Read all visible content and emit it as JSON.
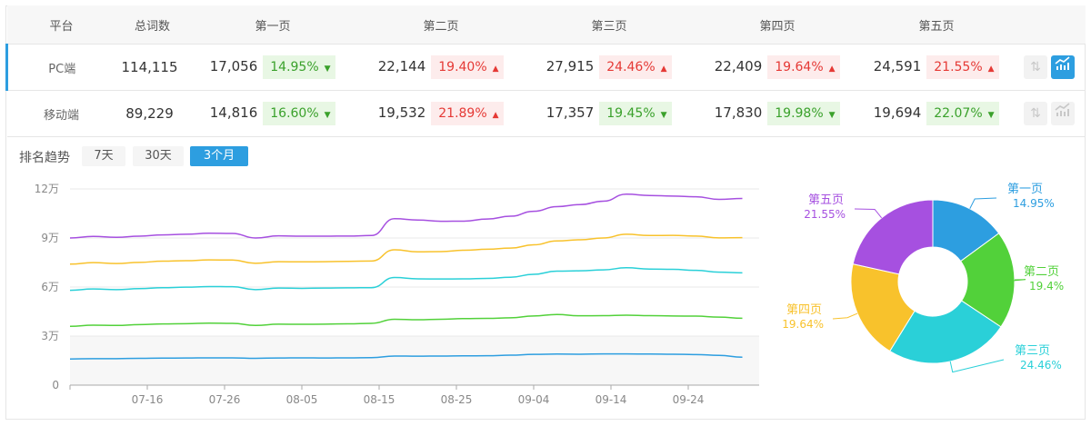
{
  "table": {
    "headers": [
      "平台",
      "总词数",
      "第一页",
      "第二页",
      "第三页",
      "第四页",
      "第五页"
    ],
    "rows": [
      {
        "platform": "PC端",
        "total": "114,115",
        "pages": [
          {
            "count": "17,056",
            "pct": "14.95%",
            "dir": "down"
          },
          {
            "count": "22,144",
            "pct": "19.40%",
            "dir": "up"
          },
          {
            "count": "27,915",
            "pct": "24.46%",
            "dir": "up"
          },
          {
            "count": "22,409",
            "pct": "19.64%",
            "dir": "up"
          },
          {
            "count": "24,591",
            "pct": "21.55%",
            "dir": "up"
          }
        ],
        "chart_active": true
      },
      {
        "platform": "移动端",
        "total": "89,229",
        "pages": [
          {
            "count": "14,816",
            "pct": "16.60%",
            "dir": "down"
          },
          {
            "count": "19,532",
            "pct": "21.89%",
            "dir": "up"
          },
          {
            "count": "17,357",
            "pct": "19.45%",
            "dir": "down"
          },
          {
            "count": "17,830",
            "pct": "19.98%",
            "dir": "down"
          },
          {
            "count": "19,694",
            "pct": "22.07%",
            "dir": "down"
          }
        ],
        "chart_active": false
      }
    ]
  },
  "icons": {
    "up": "triangle-up",
    "down": "triangle-down",
    "sort": "sort-arrows-icon",
    "chart": "bar-line-chart-icon"
  },
  "trend": {
    "title": "排名趋势",
    "ranges": [
      "7天",
      "30天",
      "3个月"
    ],
    "active_range": "3个月"
  },
  "colors": {
    "accent": "#2d9ee0",
    "up": "#e53935",
    "down": "#3aa12b",
    "series": [
      "#2d9ee0",
      "#52d13a",
      "#2ad0d8",
      "#f8c22c",
      "#a650e0"
    ]
  },
  "chart_data": [
    {
      "type": "line",
      "stacked": true,
      "ylim": [
        0,
        120000
      ],
      "y_ticks": [
        "0",
        "3万",
        "6万",
        "9万",
        "12万"
      ],
      "x_ticks": [
        "07-16",
        "07-26",
        "08-05",
        "08-15",
        "08-25",
        "09-04",
        "09-14",
        "09-24"
      ],
      "x": [
        "07-06",
        "07-09",
        "07-12",
        "07-15",
        "07-18",
        "07-21",
        "07-24",
        "07-27",
        "07-30",
        "08-02",
        "08-05",
        "08-08",
        "08-11",
        "08-14",
        "08-17",
        "08-20",
        "08-23",
        "08-26",
        "08-29",
        "09-01",
        "09-04",
        "09-07",
        "09-10",
        "09-13",
        "09-16",
        "09-19",
        "09-22",
        "09-25",
        "09-28",
        "10-01"
      ],
      "series": [
        {
          "values": [
            16000,
            16200,
            16200,
            16400,
            16500,
            16600,
            16700,
            16700,
            16400,
            16600,
            16700,
            16600,
            16700,
            16800,
            17800,
            17700,
            17800,
            17900,
            18000,
            18300,
            18800,
            19000,
            18900,
            19100,
            19100,
            19000,
            18900,
            18700,
            18200,
            17100
          ]
        },
        {
          "values": [
            20000,
            20500,
            20300,
            20600,
            20900,
            21000,
            21200,
            21100,
            20100,
            20700,
            20500,
            20700,
            20800,
            21000,
            22500,
            22300,
            22500,
            22800,
            22800,
            22900,
            23500,
            24200,
            23500,
            23400,
            23700,
            23500,
            23400,
            23500,
            23400,
            23800
          ]
        },
        {
          "values": [
            22000,
            22100,
            21900,
            22000,
            22200,
            22300,
            22400,
            22400,
            21900,
            22100,
            22000,
            22100,
            22000,
            21800,
            25500,
            25000,
            24600,
            24300,
            24500,
            24800,
            25500,
            26500,
            27500,
            28000,
            29000,
            28500,
            28500,
            28000,
            27500,
            27800
          ]
        },
        {
          "values": [
            16000,
            16100,
            16000,
            16100,
            16200,
            16200,
            16300,
            16300,
            16100,
            16100,
            16200,
            16100,
            16200,
            16300,
            17000,
            16500,
            16800,
            17500,
            17800,
            17800,
            18000,
            18500,
            19000,
            19500,
            20500,
            20500,
            20800,
            21000,
            21000,
            21500
          ]
        },
        {
          "values": [
            16000,
            16100,
            16000,
            16000,
            16100,
            16200,
            16300,
            16300,
            15500,
            15800,
            15700,
            15600,
            15500,
            15600,
            19000,
            19500,
            18500,
            17800,
            18500,
            19500,
            20500,
            21000,
            21500,
            22500,
            24500,
            24500,
            24000,
            24000,
            23500,
            24000
          ]
        }
      ]
    },
    {
      "type": "pie",
      "donut": true,
      "slices": [
        {
          "label": "第一页",
          "value": 14.95,
          "text": "14.95%"
        },
        {
          "label": "第二页",
          "value": 19.4,
          "text": "19.4%"
        },
        {
          "label": "第三页",
          "value": 24.46,
          "text": "24.46%"
        },
        {
          "label": "第四页",
          "value": 19.64,
          "text": "19.64%"
        },
        {
          "label": "第五页",
          "value": 21.55,
          "text": "21.55%"
        }
      ]
    }
  ]
}
